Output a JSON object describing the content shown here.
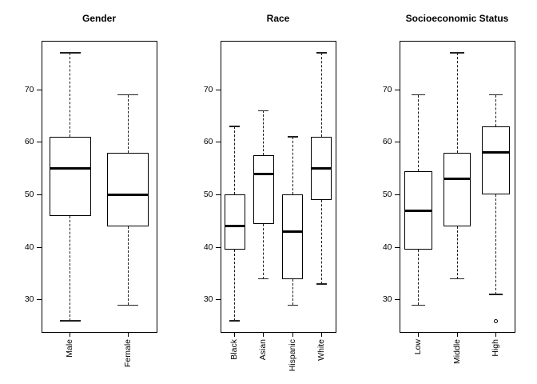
{
  "figure": {
    "colors": {
      "line": "#000000",
      "median": "#000000",
      "background": "#ffffff"
    }
  },
  "chart_data": [
    {
      "type": "boxplot",
      "title": "Gender",
      "categories": [
        "Male",
        "Female"
      ],
      "xlabel": "",
      "ylabel": "",
      "yticks": [
        30,
        40,
        50,
        60,
        70
      ],
      "ylim": [
        23.8,
        79.3
      ],
      "grid": false,
      "boxes": [
        {
          "label": "Male",
          "whisker_low": 26,
          "q1": 46,
          "median": 55,
          "q3": 61,
          "whisker_high": 77,
          "outliers": []
        },
        {
          "label": "Female",
          "whisker_low": 29,
          "q1": 44,
          "median": 50,
          "q3": 58,
          "whisker_high": 69,
          "outliers": []
        }
      ]
    },
    {
      "type": "boxplot",
      "title": "Race",
      "categories": [
        "Black",
        "Asian",
        "Hispanic",
        "White"
      ],
      "xlabel": "",
      "ylabel": "",
      "yticks": [
        30,
        40,
        50,
        60,
        70
      ],
      "ylim": [
        23.8,
        79.3
      ],
      "grid": false,
      "boxes": [
        {
          "label": "Black",
          "whisker_low": 26,
          "q1": 39.5,
          "median": 44,
          "q3": 50,
          "whisker_high": 63,
          "outliers": []
        },
        {
          "label": "Asian",
          "whisker_low": 34,
          "q1": 44.5,
          "median": 54,
          "q3": 57.5,
          "whisker_high": 66,
          "outliers": []
        },
        {
          "label": "Hispanic",
          "whisker_low": 29,
          "q1": 34,
          "median": 43,
          "q3": 50,
          "whisker_high": 61,
          "outliers": []
        },
        {
          "label": "White",
          "whisker_low": 33,
          "q1": 49,
          "median": 55,
          "q3": 61,
          "whisker_high": 77,
          "outliers": []
        }
      ]
    },
    {
      "type": "boxplot",
      "title": "Socioeconomic Status",
      "categories": [
        "Low",
        "Middle",
        "High"
      ],
      "xlabel": "",
      "ylabel": "",
      "yticks": [
        30,
        40,
        50,
        60,
        70
      ],
      "ylim": [
        23.8,
        79.3
      ],
      "grid": false,
      "boxes": [
        {
          "label": "Low",
          "whisker_low": 29,
          "q1": 39.5,
          "median": 47,
          "q3": 54.5,
          "whisker_high": 69,
          "outliers": []
        },
        {
          "label": "Middle",
          "whisker_low": 34,
          "q1": 44,
          "median": 53,
          "q3": 58,
          "whisker_high": 77,
          "outliers": []
        },
        {
          "label": "High",
          "whisker_low": 31,
          "q1": 50,
          "median": 58,
          "q3": 63,
          "whisker_high": 69,
          "outliers": [
            26
          ]
        }
      ]
    }
  ]
}
